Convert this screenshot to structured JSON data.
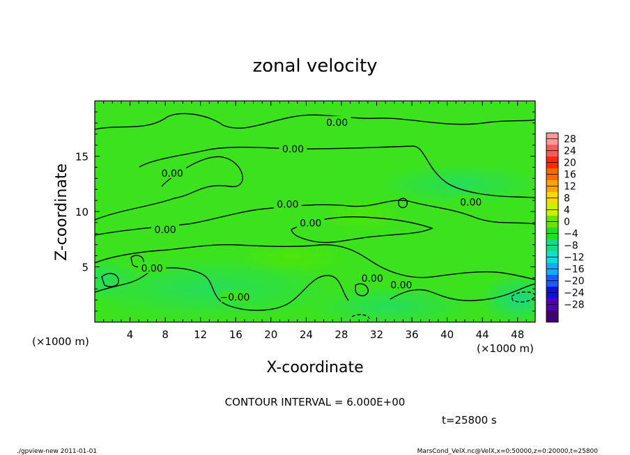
{
  "chart_data": {
    "type": "heatmap",
    "title": "zonal velocity",
    "xlabel": "X-coordinate",
    "ylabel": "Z-coordinate",
    "x_unit_left": "(×1000 m)",
    "x_unit_right": "(×1000 m)",
    "xlim": [
      0,
      50
    ],
    "ylim": [
      0,
      20
    ],
    "x_ticks": [
      4,
      8,
      12,
      16,
      20,
      24,
      28,
      32,
      36,
      40,
      44,
      48
    ],
    "y_ticks": [
      5,
      10,
      15
    ],
    "colorbar": {
      "levels": [
        28,
        24,
        20,
        16,
        12,
        8,
        4,
        0,
        -4,
        -8,
        -12,
        -16,
        -20,
        -24,
        -28
      ],
      "labels": [
        "28",
        "24",
        "20",
        "16",
        "12",
        "8",
        "4",
        "0",
        "−4",
        "−8",
        "−12",
        "−16",
        "−20",
        "−24",
        "−28"
      ],
      "colors": [
        "#ff9a9a",
        "#ff5a5a",
        "#ff2a00",
        "#ff6a00",
        "#ffa500",
        "#ffd700",
        "#c8f000",
        "#6ee000",
        "#22dd22",
        "#11dd88",
        "#14dcd0",
        "#18a8ff",
        "#1a5cff",
        "#1010d8",
        "#5000b0",
        "#400070"
      ]
    },
    "contour_labels": [
      {
        "text": "0.00",
        "x": 27.5,
        "z": 18.0
      },
      {
        "text": "0.00",
        "x": 22.5,
        "z": 15.6
      },
      {
        "text": "0.00",
        "x": 8.8,
        "z": 13.4
      },
      {
        "text": "0.00",
        "x": 21.9,
        "z": 10.6
      },
      {
        "text": "0.00",
        "x": 42.7,
        "z": 10.8
      },
      {
        "text": "0.00",
        "x": 24.5,
        "z": 8.9
      },
      {
        "text": "0.00",
        "x": 8.0,
        "z": 8.3
      },
      {
        "text": "0.00",
        "x": 6.5,
        "z": 4.8
      },
      {
        "text": "0.00",
        "x": 31.5,
        "z": 3.9
      },
      {
        "text": "0.00",
        "x": 34.8,
        "z": 3.3
      },
      {
        "text": "−0.00",
        "x": 15.9,
        "z": 2.2
      }
    ],
    "contour_interval": "CONTOUR INTERVAL = 6.000E+00",
    "time_label": "t=25800 s"
  },
  "footer": {
    "left": "./gpview-new  2011-01-01",
    "right": "MarsCond_VelX.nc@VelX,x=0:50000,z=0:20000,t=25800"
  }
}
